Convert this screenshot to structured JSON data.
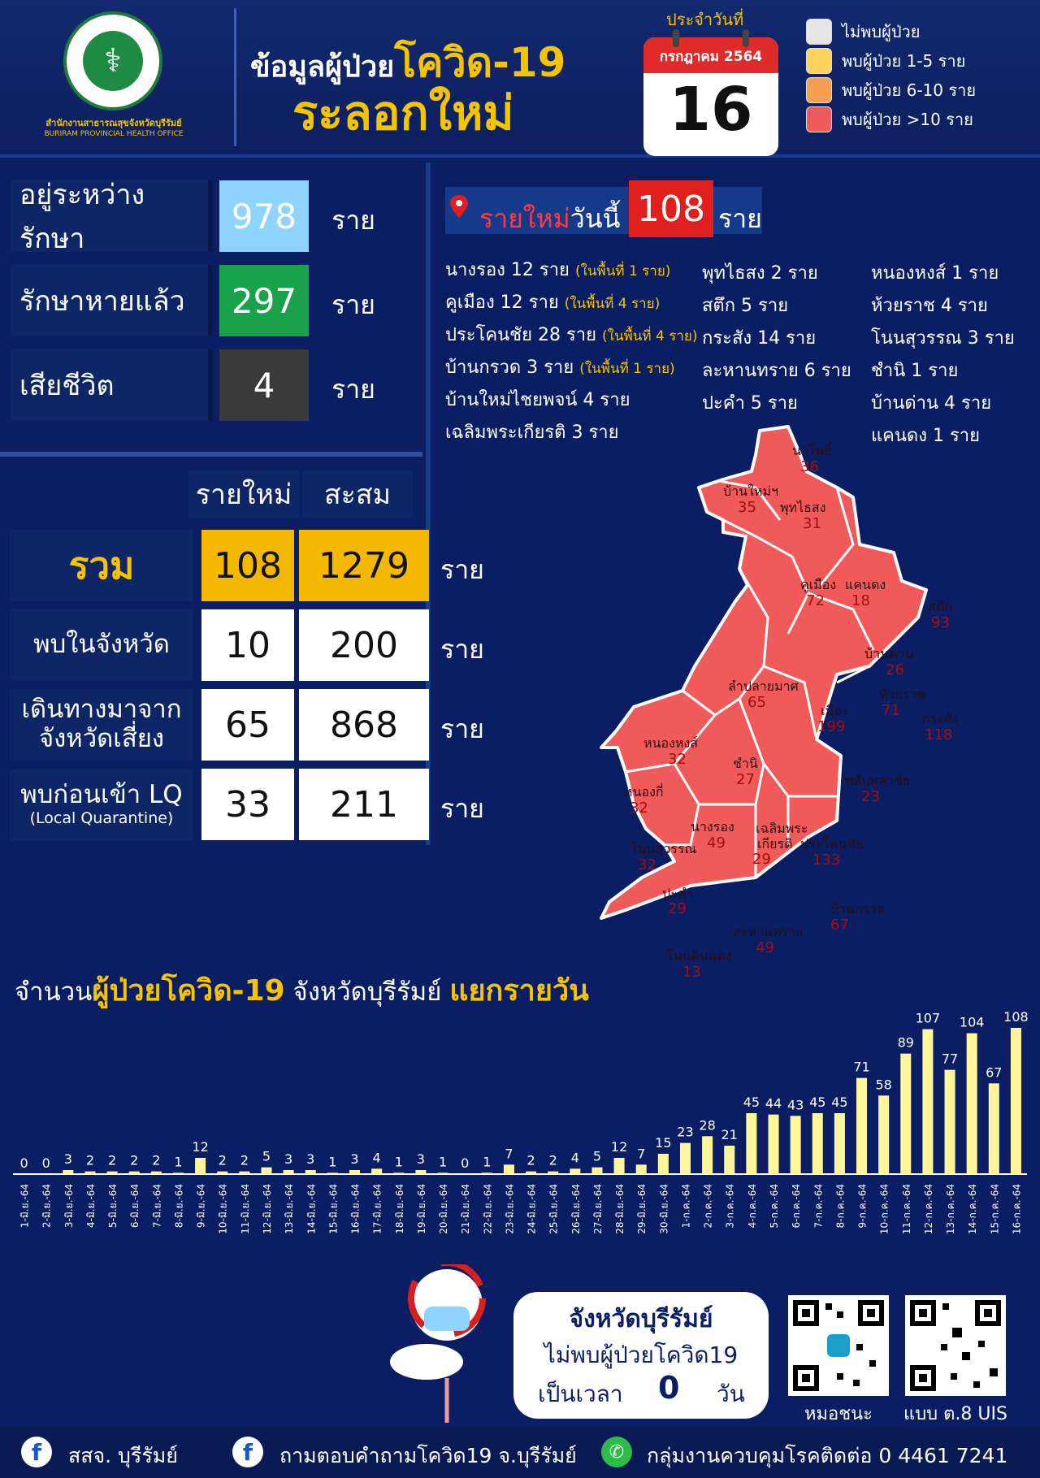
{
  "header": {
    "org_name_th": "สำนักงานสาธารณสุขจังหวัดบุรีรัมย์",
    "org_name_en": "BURIRAM PROVINCIAL HEALTH OFFICE",
    "title_prefix": "ข้อมูลผู้ป่วย",
    "title_highlight": "โควิด-19",
    "title_line2": "ระลอกใหม่",
    "date_caption": "ประจำวันที่",
    "date_month": "กรกฎาคม 2564",
    "date_day": "16"
  },
  "legend": [
    {
      "label": "ไม่พบผู้ป่วย",
      "color": "#e6e6e6"
    },
    {
      "label": "พบผู้ป่วย 1-5 ราย",
      "color": "#ffd45c"
    },
    {
      "label": "พบผู้ป่วย 6-10 ราย",
      "color": "#f5a050"
    },
    {
      "label": "พบผู้ป่วย >10 ราย",
      "color": "#f05a5a"
    }
  ],
  "status": [
    {
      "label": "อยู่ระหว่างรักษา",
      "value": "978",
      "unit": "ราย",
      "color": "#8fd3ff"
    },
    {
      "label": "รักษาหายแล้ว",
      "value": "297",
      "unit": "ราย",
      "color": "#1aa24a"
    },
    {
      "label": "เสียชีวิต",
      "value": "4",
      "unit": "ราย",
      "color": "#3a3a3a"
    }
  ],
  "totals": {
    "col_new": "รายใหม่",
    "col_cum": "สะสม",
    "rows": [
      {
        "label": "รวม",
        "sub": "",
        "new": "108",
        "cum": "1279",
        "unit": "ราย"
      },
      {
        "label": "พบในจังหวัด",
        "sub": "",
        "new": "10",
        "cum": "200",
        "unit": "ราย"
      },
      {
        "label": "เดินทางมาจาก",
        "sub": "จังหวัดเสี่ยง",
        "new": "65",
        "cum": "868",
        "unit": "ราย"
      },
      {
        "label": "พบก่อนเข้า LQ",
        "sub": "(Local Quarantine)",
        "new": "33",
        "cum": "211",
        "unit": "ราย"
      }
    ]
  },
  "new_today": {
    "label_red": "รายใหม่",
    "label_white": "วันนี้",
    "count": "108",
    "unit": "ราย",
    "col1": [
      {
        "text": "นางรอง  12  ราย",
        "note": "(ในพื้นที่ 1 ราย)"
      },
      {
        "text": "คูเมือง  12  ราย",
        "note": "(ในพื้นที่ 4 ราย)"
      },
      {
        "text": "ประโคนชัย  28  ราย",
        "note": "(ในพื้นที่ 4 ราย)"
      },
      {
        "text": "บ้านกรวด  3  ราย",
        "note": "(ในพื้นที่ 1 ราย)"
      },
      {
        "text": "บ้านใหม่ไชยพจน์  4  ราย",
        "note": ""
      },
      {
        "text": "เฉลิมพระเกียรติ  3  ราย",
        "note": ""
      }
    ],
    "col2": [
      "พุทไธสง  2  ราย",
      "สตึก  5  ราย",
      "กระสัง  14  ราย",
      "ละหานทราย  6  ราย",
      "ปะคำ  5  ราย"
    ],
    "col3": [
      "หนองหงส์  1  ราย",
      "ห้วยราช  4  ราย",
      "โนนสุวรรณ  3  ราย",
      "ชำนิ  1  ราย",
      "บ้านด่าน  4  ราย",
      "แคนดง  1  ราย"
    ]
  },
  "map_districts": [
    {
      "name": "นาโพธิ์",
      "value": "36"
    },
    {
      "name": "บ้านใหม่ฯ",
      "value": "35"
    },
    {
      "name": "พุทไธสง",
      "value": "31"
    },
    {
      "name": "คูเมือง",
      "value": "72"
    },
    {
      "name": "แคนดง",
      "value": "18"
    },
    {
      "name": "สตึก",
      "value": "93"
    },
    {
      "name": "บ้านด่าน",
      "value": "26"
    },
    {
      "name": "ลำปลายมาศ",
      "value": "65"
    },
    {
      "name": "ห้วยราช",
      "value": "71"
    },
    {
      "name": "เมือง",
      "value": "199"
    },
    {
      "name": "กระสัง",
      "value": "118"
    },
    {
      "name": "หนองหงส์",
      "value": "32"
    },
    {
      "name": "ชำนิ",
      "value": "27"
    },
    {
      "name": "พลับพลาชัย",
      "value": "23"
    },
    {
      "name": "หนองกี่",
      "value": "32"
    },
    {
      "name": "นางรอง",
      "value": "49"
    },
    {
      "name": "เฉลิมพระ",
      "value": ""
    },
    {
      "name": "เกียรติ",
      "value": "29"
    },
    {
      "name": "ประโคนชัย",
      "value": "133"
    },
    {
      "name": "โนนสุวรรณ",
      "value": "32"
    },
    {
      "name": "ปะคำ",
      "value": "29"
    },
    {
      "name": "บ้านกรวด",
      "value": "67"
    },
    {
      "name": "ละหานทราย",
      "value": "49"
    },
    {
      "name": "โนนดินแดง",
      "value": "13"
    }
  ],
  "chart_title": {
    "part1": "จำนวน",
    "part2": "ผู้ป่วยโควิด-19",
    "part3": " จังหวัดบุรีรัมย์ ",
    "part4": "แยกรายวัน"
  },
  "chart_data": {
    "type": "bar",
    "bar_color": "#fff59a",
    "categories": [
      "1-มิ.ย.-64",
      "2-มิ.ย.-64",
      "3-มิ.ย.-64",
      "4-มิ.ย.-64",
      "5-มิ.ย.-64",
      "6-มิ.ย.-64",
      "7-มิ.ย.-64",
      "8-มิ.ย.-64",
      "9-มิ.ย.-64",
      "10-มิ.ย.-64",
      "11-มิ.ย.-64",
      "12-มิ.ย.-64",
      "13-มิ.ย.-64",
      "14-มิ.ย.-64",
      "15-มิ.ย.-64",
      "16-มิ.ย.-64",
      "17-มิ.ย.-64",
      "18-มิ.ย.-64",
      "19-มิ.ย.-64",
      "20-มิ.ย.-64",
      "21-มิ.ย.-64",
      "22-มิ.ย.-64",
      "23-มิ.ย.-64",
      "24-มิ.ย.-64",
      "25-มิ.ย.-64",
      "26-มิ.ย.-64",
      "27-มิ.ย.-64",
      "28-มิ.ย.-64",
      "29-มิ.ย.-64",
      "30-มิ.ย.-64",
      "1-ก.ค.-64",
      "2-ก.ค.-64",
      "3-ก.ค.-64",
      "4-ก.ค.-64",
      "5-ก.ค.-64",
      "6-ก.ค.-64",
      "7-ก.ค.-64",
      "8-ก.ค.-64",
      "9-ก.ค.-64",
      "10-ก.ค.-64",
      "11-ก.ค.-64",
      "12-ก.ค.-64",
      "13-ก.ค.-64",
      "14-ก.ค.-64",
      "15-ก.ค.-64",
      "16-ก.ค.-64"
    ],
    "values": [
      0,
      0,
      3,
      2,
      2,
      2,
      2,
      1,
      12,
      2,
      2,
      5,
      3,
      3,
      1,
      3,
      4,
      1,
      3,
      1,
      0,
      1,
      7,
      2,
      2,
      4,
      5,
      12,
      7,
      15,
      23,
      28,
      21,
      45,
      44,
      43,
      45,
      45,
      71,
      58,
      89,
      107,
      77,
      104,
      67,
      108
    ],
    "ylim": [
      0,
      108
    ]
  },
  "footer": {
    "bubble_title": "จังหวัดบุรีรัมย์",
    "bubble_line1": "ไม่พบผู้ป่วยโควิด19",
    "bubble_prefix": "เป็นเวลา",
    "bubble_days": "0",
    "bubble_suffix": "วัน",
    "qr1_label": "หมอชนะ",
    "qr2_label": "แบบ ต.8 UIS",
    "fb1": "สสจ. บุรีรัมย์",
    "fb2": "ถามตอบคำถามโควิด19 จ.บุรีรัมย์",
    "phone": "กลุ่มงานควบคุมโรคติดต่อ 0 4461 7241"
  }
}
